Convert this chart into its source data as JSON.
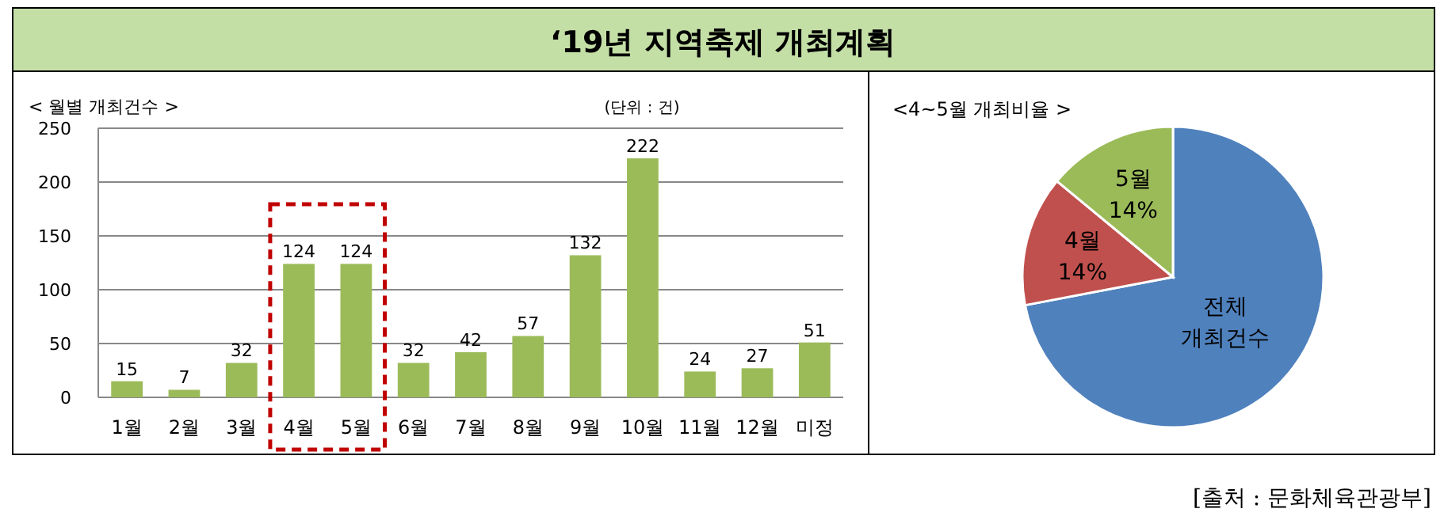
{
  "chart_data": [
    {
      "type": "bar",
      "title": "‘19년 지역축제 개최계획",
      "subtitle": "< 월별 개최건수 >",
      "annotations": [
        "(단위 : 건)"
      ],
      "categories": [
        "1월",
        "2월",
        "3월",
        "4월",
        "5월",
        "6월",
        "7월",
        "8월",
        "9월",
        "10월",
        "11월",
        "12월",
        "미정"
      ],
      "values": [
        15,
        7,
        32,
        124,
        124,
        32,
        42,
        57,
        132,
        222,
        24,
        27,
        51
      ],
      "color": "#9bbb59",
      "ylim": [
        0,
        250
      ],
      "yticks": [
        0,
        50,
        100,
        150,
        200,
        250
      ],
      "grid": "y",
      "data_labels": true
    },
    {
      "type": "pie",
      "title": "<4~5월 개최비율 >",
      "annotations": [
        "[출처 : 문화체육관광부]"
      ],
      "categories": [
        "전체 개최건수",
        "4월",
        "5월"
      ],
      "values": [
        72,
        14,
        14
      ],
      "value_labels": [
        null,
        "14%",
        "14%"
      ],
      "colors": [
        "#4f81bd",
        "#c0504d",
        "#9bbb59"
      ]
    }
  ]
}
